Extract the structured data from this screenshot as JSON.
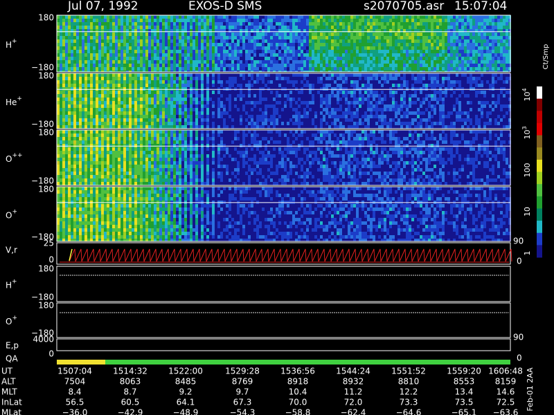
{
  "header": {
    "date": "Jul 07, 1992",
    "instrument": "EXOS-D SMS",
    "file": "s2070705.asr",
    "time": "15:07:04"
  },
  "spectrograms": [
    {
      "ion": "H",
      "charge": "+",
      "top": "180",
      "bottom": "−180"
    },
    {
      "ion": "He",
      "charge": "+",
      "top": "180",
      "bottom": "−180"
    },
    {
      "ion": "O",
      "charge": "++",
      "top": "180",
      "bottom": "−180"
    },
    {
      "ion": "O",
      "charge": "+",
      "top": "180",
      "bottom": "−180"
    }
  ],
  "velocity": {
    "label": "V,r",
    "left": [
      "25",
      "0"
    ],
    "right": [
      "90",
      "0"
    ]
  },
  "orbit": [
    {
      "ion": "H",
      "charge": "+",
      "top": "180",
      "bottom": "−180"
    },
    {
      "ion": "O",
      "charge": "+",
      "top": "180",
      "bottom": "−180"
    }
  ],
  "energy": {
    "label": "E,p",
    "left": [
      "4000",
      "0"
    ],
    "right": [
      "90",
      "0"
    ]
  },
  "qa": {
    "label": "QA"
  },
  "colorbar": {
    "title": "Ct/Smp",
    "ticks": [
      {
        "base": "10",
        "exp": "4"
      },
      {
        "base": "10",
        "exp": "3"
      },
      {
        "base": "100"
      },
      {
        "base": "10"
      },
      {
        "base": "1"
      }
    ]
  },
  "table": {
    "rows": [
      {
        "label": "UT",
        "values": [
          "1507:04",
          "1514:32",
          "1522:00",
          "1529:28",
          "1536:56",
          "1544:24",
          "1551:52",
          "1559:20",
          "1606:48"
        ]
      },
      {
        "label": "ALT",
        "values": [
          "7504",
          "8063",
          "8485",
          "8769",
          "8918",
          "8932",
          "8810",
          "8553",
          "8159"
        ]
      },
      {
        "label": "MLT",
        "values": [
          "8.4",
          "8.7",
          "9.2",
          "9.7",
          "10.4",
          "11.2",
          "12.2",
          "13.4",
          "14.6"
        ]
      },
      {
        "label": "InLat",
        "values": [
          "56.5",
          "60.5",
          "64.1",
          "67.3",
          "70.0",
          "72.0",
          "73.3",
          "73.5",
          "72.5"
        ]
      },
      {
        "label": "MLat",
        "values": [
          "−36.0",
          "−42.9",
          "−48.9",
          "−54.3",
          "−58.8",
          "−62.4",
          "−64.6",
          "−65.1",
          "−63.6"
        ]
      }
    ]
  },
  "footer": "Feb-01 2AA"
}
